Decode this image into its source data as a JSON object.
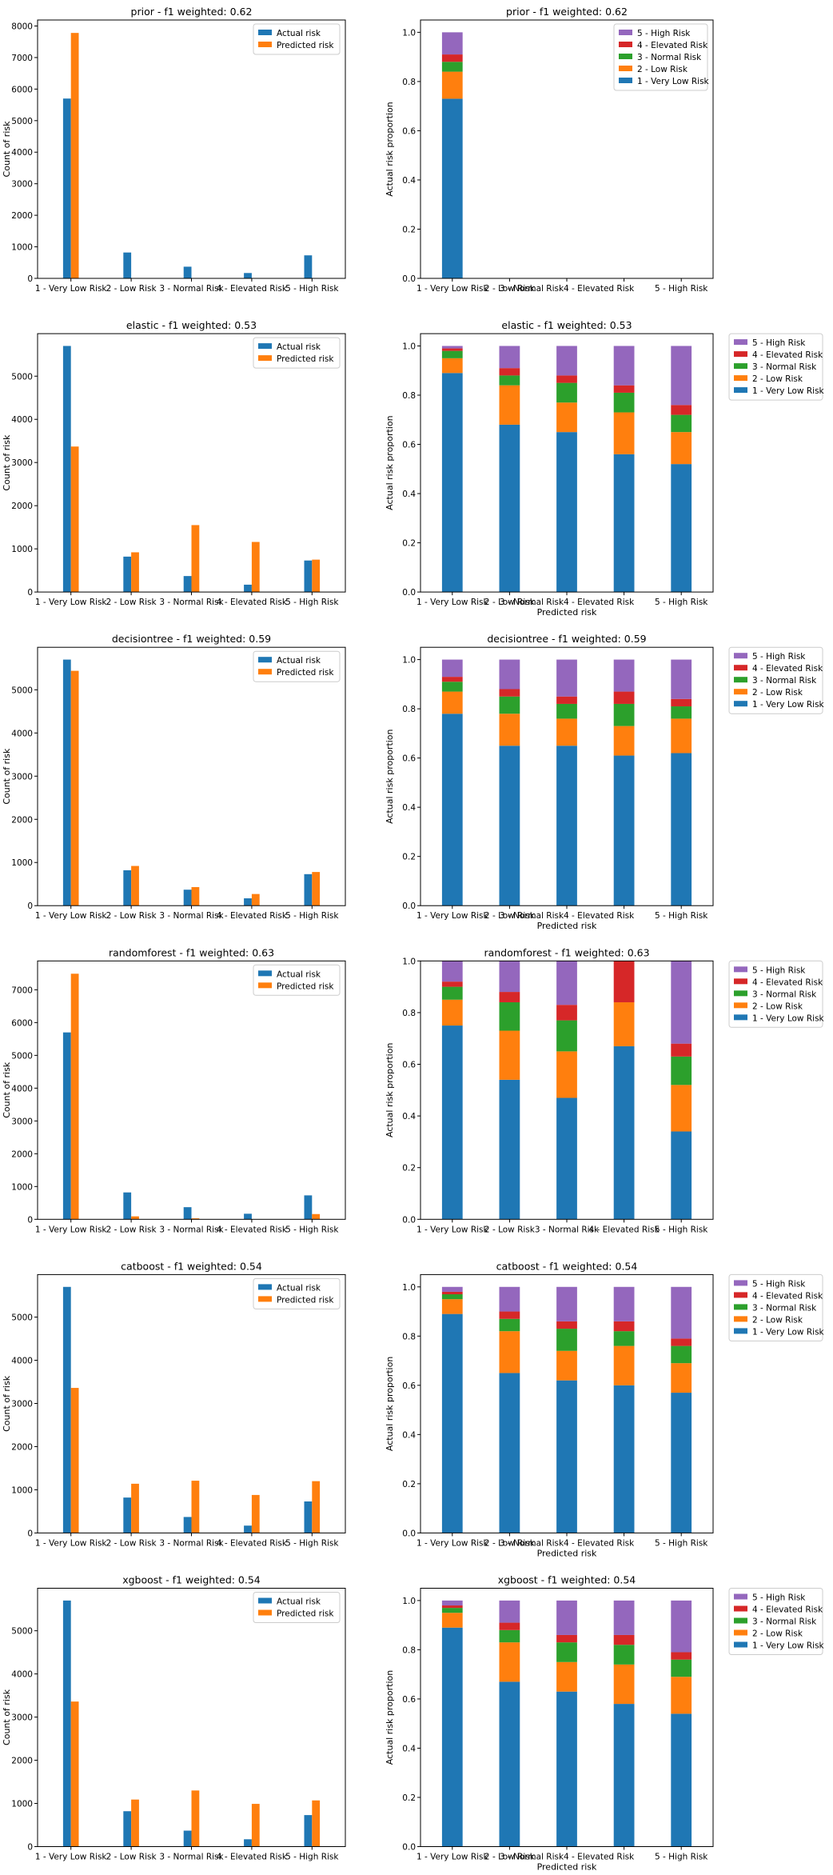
{
  "risk_levels": [
    "1 - Very Low Risk",
    "2 - Low Risk",
    "3 - Normal Risk",
    "4 - Elevated Risk",
    "5 - High Risk"
  ],
  "colors": {
    "actual": "#1f77b4",
    "predicted": "#ff7f0e",
    "stack": [
      "#1f77b4",
      "#ff7f0e",
      "#2ca02c",
      "#d62728",
      "#9467bd"
    ]
  },
  "chart_data": [
    {
      "type": "bar",
      "title": "prior - f1 weighted: 0.62",
      "xlabel": "",
      "ylabel": "Count of risk",
      "categories": [
        "1 - Very Low Risk",
        "2 - Low Risk",
        "3 - Normal Risk",
        "4 - Elevated Risk",
        "5 - High Risk"
      ],
      "series": [
        {
          "name": "Actual risk",
          "values": [
            5700,
            820,
            370,
            170,
            730
          ]
        },
        {
          "name": "Predicted risk",
          "values": [
            7780,
            0,
            0,
            0,
            0
          ]
        }
      ],
      "ylim": [
        0,
        8190
      ],
      "yticks": [
        0,
        1000,
        2000,
        3000,
        4000,
        5000,
        6000,
        7000,
        8000
      ],
      "legend": "top-right"
    },
    {
      "type": "bar",
      "stacked": true,
      "title": "prior - f1 weighted: 0.62",
      "xlabel": "",
      "ylabel": "Actual risk proportion",
      "categories": [
        "1 - Very Low Risk",
        "2 - Low Risk",
        "3 - Normal Risk4 - Elevated Risk",
        "",
        "5 - High Risk"
      ],
      "series": [
        {
          "name": "1 - Very Low Risk",
          "values": [
            0.73,
            0,
            0,
            0,
            0
          ]
        },
        {
          "name": "2 - Low Risk",
          "values": [
            0.11,
            0,
            0,
            0,
            0
          ]
        },
        {
          "name": "3 - Normal Risk",
          "values": [
            0.04,
            0,
            0,
            0,
            0
          ]
        },
        {
          "name": "4 - Elevated Risk",
          "values": [
            0.03,
            0,
            0,
            0,
            0
          ]
        },
        {
          "name": "5 - High Risk",
          "values": [
            0.09,
            0,
            0,
            0,
            0
          ]
        }
      ],
      "ylim": [
        0,
        1.05
      ],
      "yticks": [
        0,
        0.2,
        0.4,
        0.6,
        0.8,
        1.0
      ],
      "legend": "top-right"
    },
    {
      "type": "bar",
      "title": "elastic - f1 weighted: 0.53",
      "xlabel": "",
      "ylabel": "Count of risk",
      "categories": [
        "1 - Very Low Risk",
        "2 - Low Risk",
        "3 - Normal Risk",
        "4 - Elevated Risk",
        "5 - High Risk"
      ],
      "series": [
        {
          "name": "Actual risk",
          "values": [
            5700,
            820,
            370,
            170,
            730
          ]
        },
        {
          "name": "Predicted risk",
          "values": [
            3370,
            920,
            1550,
            1160,
            750
          ]
        }
      ],
      "ylim": [
        0,
        5985
      ],
      "yticks": [
        0,
        1000,
        2000,
        3000,
        4000,
        5000
      ],
      "legend": "top-right"
    },
    {
      "type": "bar",
      "stacked": true,
      "title": "elastic - f1 weighted: 0.53",
      "xlabel": "Predicted risk",
      "ylabel": "Actual risk proportion",
      "categories": [
        "1 - Very Low Risk",
        "2 - Low Risk",
        "3 - Normal Risk4 - Elevated Risk",
        "",
        "5 - High Risk"
      ],
      "series": [
        {
          "name": "1 - Very Low Risk",
          "values": [
            0.89,
            0.68,
            0.65,
            0.56,
            0.52
          ]
        },
        {
          "name": "2 - Low Risk",
          "values": [
            0.06,
            0.16,
            0.12,
            0.17,
            0.13
          ]
        },
        {
          "name": "3 - Normal Risk",
          "values": [
            0.03,
            0.04,
            0.08,
            0.08,
            0.07
          ]
        },
        {
          "name": "4 - Elevated Risk",
          "values": [
            0.01,
            0.03,
            0.03,
            0.03,
            0.04
          ]
        },
        {
          "name": "5 - High Risk",
          "values": [
            0.01,
            0.09,
            0.12,
            0.16,
            0.24
          ]
        }
      ],
      "ylim": [
        0,
        1.05
      ],
      "yticks": [
        0,
        0.2,
        0.4,
        0.6,
        0.8,
        1.0
      ],
      "legend": "outside-right"
    },
    {
      "type": "bar",
      "title": "decisiontree - f1 weighted: 0.59",
      "xlabel": "",
      "ylabel": "Count of risk",
      "categories": [
        "1 - Very Low Risk",
        "2 - Low Risk",
        "3 - Normal Risk",
        "4 - Elevated Risk",
        "5 - High Risk"
      ],
      "series": [
        {
          "name": "Actual risk",
          "values": [
            5700,
            820,
            370,
            170,
            730
          ]
        },
        {
          "name": "Predicted risk",
          "values": [
            5440,
            920,
            430,
            270,
            780
          ]
        }
      ],
      "ylim": [
        0,
        5985
      ],
      "yticks": [
        0,
        1000,
        2000,
        3000,
        4000,
        5000
      ],
      "legend": "top-right"
    },
    {
      "type": "bar",
      "stacked": true,
      "title": "decisiontree - f1 weighted: 0.59",
      "xlabel": "Predicted risk",
      "ylabel": "Actual risk proportion",
      "categories": [
        "1 - Very Low Risk",
        "2 - Low Risk",
        "3 - Normal Risk4 - Elevated Risk",
        "",
        "5 - High Risk"
      ],
      "series": [
        {
          "name": "1 - Very Low Risk",
          "values": [
            0.78,
            0.65,
            0.65,
            0.61,
            0.62
          ]
        },
        {
          "name": "2 - Low Risk",
          "values": [
            0.09,
            0.13,
            0.11,
            0.12,
            0.14
          ]
        },
        {
          "name": "3 - Normal Risk",
          "values": [
            0.04,
            0.07,
            0.06,
            0.09,
            0.05
          ]
        },
        {
          "name": "4 - Elevated Risk",
          "values": [
            0.02,
            0.03,
            0.03,
            0.05,
            0.03
          ]
        },
        {
          "name": "5 - High Risk",
          "values": [
            0.07,
            0.12,
            0.15,
            0.13,
            0.16
          ]
        }
      ],
      "ylim": [
        0,
        1.05
      ],
      "yticks": [
        0,
        0.2,
        0.4,
        0.6,
        0.8,
        1.0
      ],
      "legend": "outside-right"
    },
    {
      "type": "bar",
      "title": "randomforest - f1 weighted: 0.63",
      "xlabel": "",
      "ylabel": "Count of risk",
      "categories": [
        "1 - Very Low Risk",
        "2 - Low Risk",
        "3 - Normal Risk",
        "4 - Elevated Risk",
        "5 - High Risk"
      ],
      "series": [
        {
          "name": "Actual risk",
          "values": [
            5700,
            820,
            370,
            170,
            730
          ]
        },
        {
          "name": "Predicted risk",
          "values": [
            7490,
            90,
            30,
            5,
            160
          ]
        }
      ],
      "ylim": [
        0,
        7880
      ],
      "yticks": [
        0,
        1000,
        2000,
        3000,
        4000,
        5000,
        6000,
        7000
      ],
      "legend": "top-right"
    },
    {
      "type": "bar",
      "stacked": true,
      "title": "randomforest - f1 weighted: 0.63",
      "xlabel": "",
      "ylabel": "Actual risk proportion",
      "categories": [
        "1 - Very Low Risk",
        "2 - Low Risk",
        "3 - Normal Risk",
        "4 - Elevated Risk",
        "5 - High Risk"
      ],
      "series": [
        {
          "name": "1 - Very Low Risk",
          "values": [
            0.75,
            0.54,
            0.47,
            0.67,
            0.34
          ]
        },
        {
          "name": "2 - Low Risk",
          "values": [
            0.1,
            0.19,
            0.18,
            0.17,
            0.18
          ]
        },
        {
          "name": "3 - Normal Risk",
          "values": [
            0.05,
            0.11,
            0.12,
            0.0,
            0.11
          ]
        },
        {
          "name": "4 - Elevated Risk",
          "values": [
            0.02,
            0.04,
            0.06,
            0.16,
            0.05
          ]
        },
        {
          "name": "5 - High Risk",
          "values": [
            0.08,
            0.12,
            0.17,
            0.0,
            0.32
          ]
        }
      ],
      "ylim": [
        0,
        1.0
      ],
      "yticks": [
        0,
        0.2,
        0.4,
        0.6,
        0.8,
        1.0
      ],
      "legend": "outside-right"
    },
    {
      "type": "bar",
      "title": "catboost - f1 weighted: 0.54",
      "xlabel": "",
      "ylabel": "Count of risk",
      "categories": [
        "1 - Very Low Risk",
        "2 - Low Risk",
        "3 - Normal Risk",
        "4 - Elevated Risk",
        "5 - High Risk"
      ],
      "series": [
        {
          "name": "Actual risk",
          "values": [
            5700,
            820,
            370,
            170,
            730
          ]
        },
        {
          "name": "Predicted risk",
          "values": [
            3360,
            1140,
            1210,
            880,
            1200
          ]
        }
      ],
      "ylim": [
        0,
        5985
      ],
      "yticks": [
        0,
        1000,
        2000,
        3000,
        4000,
        5000
      ],
      "legend": "top-right"
    },
    {
      "type": "bar",
      "stacked": true,
      "title": "catboost - f1 weighted: 0.54",
      "xlabel": "Predicted risk",
      "ylabel": "Actual risk proportion",
      "categories": [
        "1 - Very Low Risk",
        "2 - Low Risk",
        "3 - Normal Risk4 - Elevated Risk",
        "",
        "5 - High Risk"
      ],
      "series": [
        {
          "name": "1 - Very Low Risk",
          "values": [
            0.89,
            0.65,
            0.62,
            0.6,
            0.57
          ]
        },
        {
          "name": "2 - Low Risk",
          "values": [
            0.06,
            0.17,
            0.12,
            0.16,
            0.12
          ]
        },
        {
          "name": "3 - Normal Risk",
          "values": [
            0.02,
            0.05,
            0.09,
            0.06,
            0.07
          ]
        },
        {
          "name": "4 - Elevated Risk",
          "values": [
            0.01,
            0.03,
            0.03,
            0.04,
            0.03
          ]
        },
        {
          "name": "5 - High Risk",
          "values": [
            0.02,
            0.1,
            0.14,
            0.14,
            0.21
          ]
        }
      ],
      "ylim": [
        0,
        1.05
      ],
      "yticks": [
        0,
        0.2,
        0.4,
        0.6,
        0.8,
        1.0
      ],
      "legend": "outside-right"
    },
    {
      "type": "bar",
      "title": "xgboost - f1 weighted: 0.54",
      "xlabel": "",
      "ylabel": "Count of risk",
      "categories": [
        "1 - Very Low Risk",
        "2 - Low Risk",
        "3 - Normal Risk",
        "4 - Elevated Risk",
        "5 - High Risk"
      ],
      "series": [
        {
          "name": "Actual risk",
          "values": [
            5700,
            820,
            370,
            170,
            730
          ]
        },
        {
          "name": "Predicted risk",
          "values": [
            3360,
            1090,
            1300,
            990,
            1070
          ]
        }
      ],
      "ylim": [
        0,
        5985
      ],
      "yticks": [
        0,
        1000,
        2000,
        3000,
        4000,
        5000
      ],
      "legend": "top-right"
    },
    {
      "type": "bar",
      "stacked": true,
      "title": "xgboost - f1 weighted: 0.54",
      "xlabel": "Predicted risk",
      "ylabel": "Actual risk proportion",
      "categories": [
        "1 - Very Low Risk",
        "2 - Low Risk",
        "3 - Normal Risk4 - Elevated Risk",
        "",
        "5 - High Risk"
      ],
      "series": [
        {
          "name": "1 - Very Low Risk",
          "values": [
            0.89,
            0.67,
            0.63,
            0.58,
            0.54
          ]
        },
        {
          "name": "2 - Low Risk",
          "values": [
            0.06,
            0.16,
            0.12,
            0.16,
            0.15
          ]
        },
        {
          "name": "3 - Normal Risk",
          "values": [
            0.02,
            0.05,
            0.08,
            0.08,
            0.07
          ]
        },
        {
          "name": "4 - Elevated Risk",
          "values": [
            0.01,
            0.03,
            0.03,
            0.04,
            0.03
          ]
        },
        {
          "name": "5 - High Risk",
          "values": [
            0.02,
            0.09,
            0.14,
            0.14,
            0.21
          ]
        }
      ],
      "ylim": [
        0,
        1.05
      ],
      "yticks": [
        0,
        0.2,
        0.4,
        0.6,
        0.8,
        1.0
      ],
      "legend": "outside-right"
    }
  ]
}
